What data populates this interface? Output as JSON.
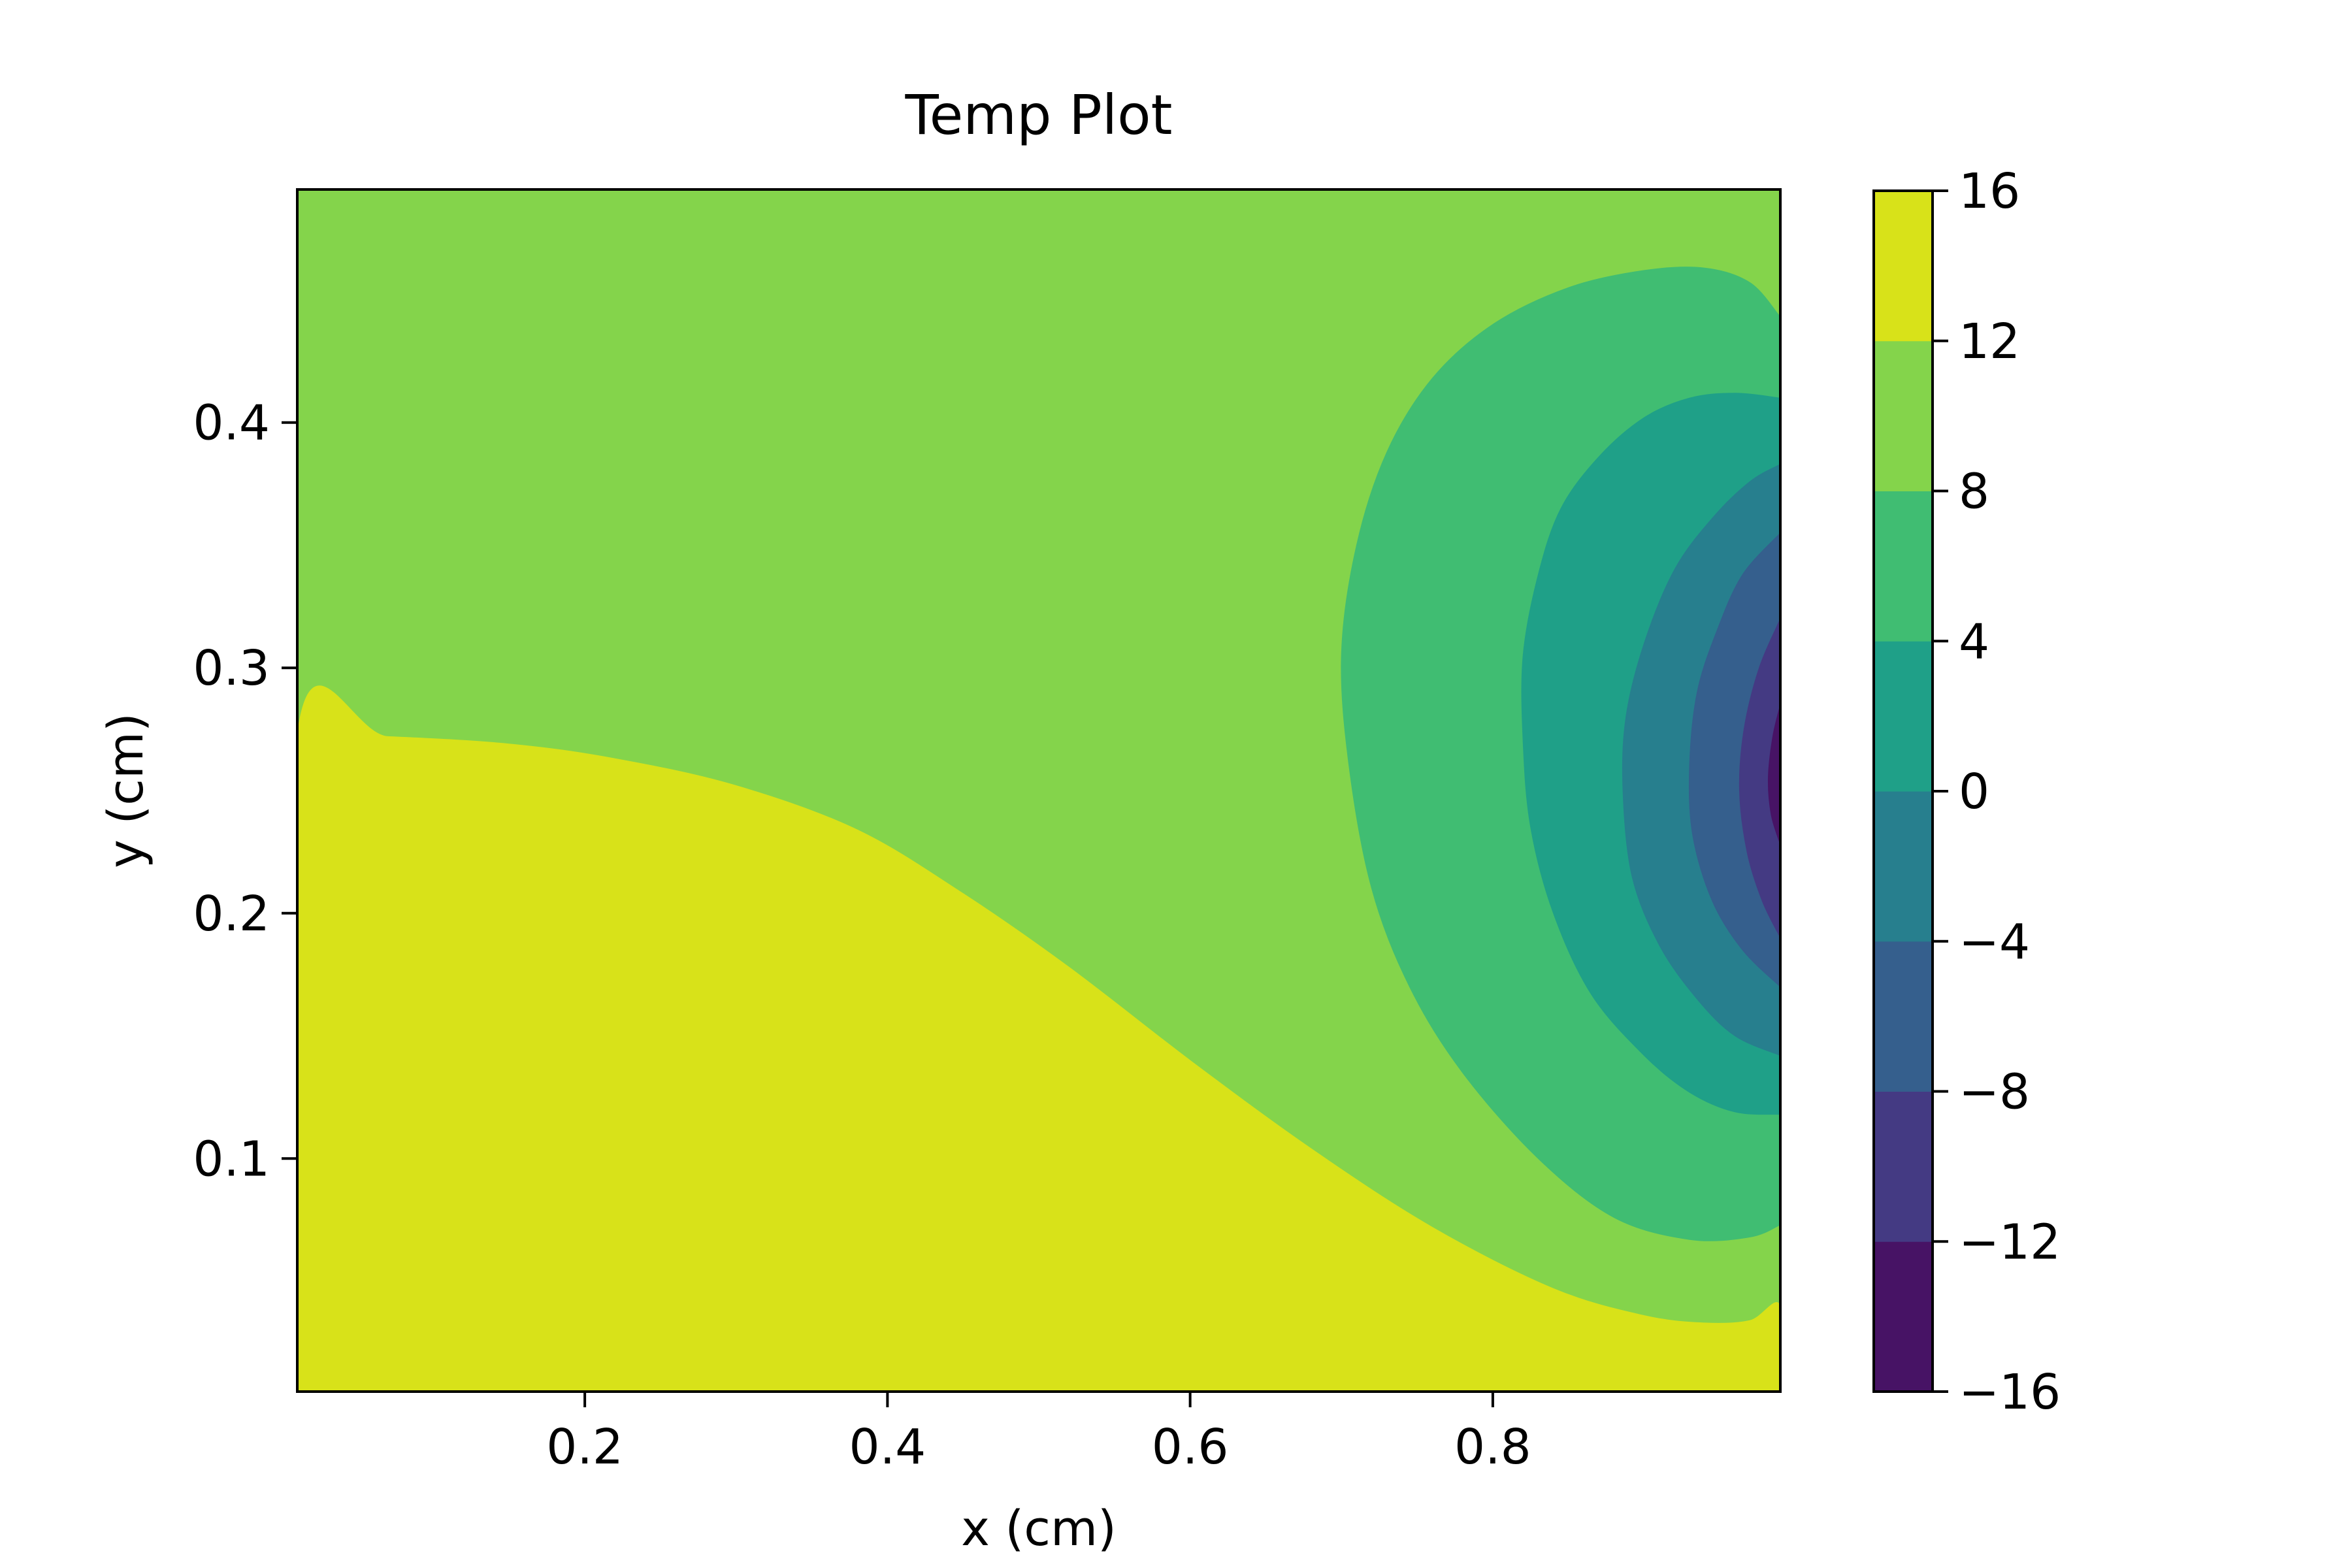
{
  "chart_data": {
    "type": "heatmap",
    "subtype": "filled-contour",
    "title": "Temp Plot",
    "xlabel": "x (cm)",
    "ylabel": "y (cm)",
    "xlim": [
      0.01,
      0.99
    ],
    "ylim": [
      0.005,
      0.495
    ],
    "xticks": [
      0.2,
      0.4,
      0.6,
      0.8
    ],
    "xtick_labels": [
      "0.2",
      "0.4",
      "0.6",
      "0.8"
    ],
    "yticks": [
      0.1,
      0.2,
      0.3,
      0.4
    ],
    "ytick_labels": [
      "0.1",
      "0.2",
      "0.3",
      "0.4"
    ],
    "grid": false,
    "colormap": "viridis",
    "colorbar": {
      "levels": [
        -16,
        -12,
        -8,
        -4,
        0,
        4,
        8,
        12,
        16
      ],
      "tick_labels": [
        "−16",
        "−12",
        "−8",
        "−4",
        "0",
        "4",
        "8",
        "12",
        "16"
      ],
      "colors": [
        "#471365",
        "#443a83",
        "#355f8d",
        "#277f8e",
        "#1fa088",
        "#40bd72",
        "#84d44b",
        "#d8e219"
      ]
    },
    "regions": [
      {
        "range": [
          8,
          12
        ],
        "color": "#84d44b",
        "boundary": [
          [
            0.01,
            0.005
          ],
          [
            0.01,
            0.495
          ],
          [
            0.99,
            0.495
          ],
          [
            0.99,
            0.005
          ]
        ]
      },
      {
        "range": [
          12,
          16
        ],
        "color": "#d8e219",
        "boundary": [
          [
            0.01,
            0.005
          ],
          [
            0.01,
            0.273
          ],
          [
            0.07,
            0.272
          ],
          [
            0.15,
            0.269
          ],
          [
            0.22,
            0.263
          ],
          [
            0.3,
            0.252
          ],
          [
            0.38,
            0.234
          ],
          [
            0.45,
            0.208
          ],
          [
            0.52,
            0.178
          ],
          [
            0.6,
            0.14
          ],
          [
            0.68,
            0.104
          ],
          [
            0.76,
            0.072
          ],
          [
            0.84,
            0.047
          ],
          [
            0.9,
            0.036
          ],
          [
            0.94,
            0.033
          ],
          [
            0.97,
            0.034
          ],
          [
            0.99,
            0.04
          ],
          [
            0.99,
            0.005
          ]
        ]
      },
      {
        "range": [
          4,
          8
        ],
        "color": "#40bd72",
        "boundary": [
          [
            0.99,
            0.443
          ],
          [
            0.97,
            0.457
          ],
          [
            0.94,
            0.463
          ],
          [
            0.9,
            0.462
          ],
          [
            0.85,
            0.455
          ],
          [
            0.8,
            0.44
          ],
          [
            0.76,
            0.418
          ],
          [
            0.73,
            0.388
          ],
          [
            0.71,
            0.35
          ],
          [
            0.7,
            0.306
          ],
          [
            0.705,
            0.26
          ],
          [
            0.72,
            0.21
          ],
          [
            0.745,
            0.17
          ],
          [
            0.78,
            0.135
          ],
          [
            0.83,
            0.1
          ],
          [
            0.88,
            0.076
          ],
          [
            0.93,
            0.067
          ],
          [
            0.97,
            0.068
          ],
          [
            0.99,
            0.073
          ]
        ]
      },
      {
        "range": [
          0,
          4
        ],
        "color": "#1fa088",
        "boundary": [
          [
            0.99,
            0.41
          ],
          [
            0.96,
            0.412
          ],
          [
            0.93,
            0.41
          ],
          [
            0.9,
            0.402
          ],
          [
            0.87,
            0.386
          ],
          [
            0.845,
            0.365
          ],
          [
            0.83,
            0.338
          ],
          [
            0.82,
            0.305
          ],
          [
            0.82,
            0.27
          ],
          [
            0.825,
            0.235
          ],
          [
            0.84,
            0.2
          ],
          [
            0.865,
            0.167
          ],
          [
            0.9,
            0.142
          ],
          [
            0.93,
            0.127
          ],
          [
            0.96,
            0.119
          ],
          [
            0.99,
            0.118
          ]
        ]
      },
      {
        "range": [
          -4,
          0
        ],
        "color": "#277f8e",
        "boundary": [
          [
            0.99,
            0.383
          ],
          [
            0.97,
            0.376
          ],
          [
            0.945,
            0.361
          ],
          [
            0.92,
            0.34
          ],
          [
            0.9,
            0.31
          ],
          [
            0.888,
            0.28
          ],
          [
            0.886,
            0.25
          ],
          [
            0.892,
            0.215
          ],
          [
            0.91,
            0.187
          ],
          [
            0.935,
            0.165
          ],
          [
            0.96,
            0.15
          ],
          [
            0.99,
            0.142
          ]
        ]
      },
      {
        "range": [
          -8,
          -4
        ],
        "color": "#355f8d",
        "boundary": [
          [
            0.99,
            0.355
          ],
          [
            0.965,
            0.338
          ],
          [
            0.948,
            0.315
          ],
          [
            0.935,
            0.29
          ],
          [
            0.93,
            0.26
          ],
          [
            0.932,
            0.232
          ],
          [
            0.945,
            0.205
          ],
          [
            0.965,
            0.185
          ],
          [
            0.99,
            0.17
          ]
        ]
      },
      {
        "range": [
          -12,
          -8
        ],
        "color": "#443a83",
        "boundary": [
          [
            0.99,
            0.32
          ],
          [
            0.976,
            0.3
          ],
          [
            0.966,
            0.275
          ],
          [
            0.963,
            0.25
          ],
          [
            0.968,
            0.225
          ],
          [
            0.978,
            0.205
          ],
          [
            0.99,
            0.19
          ]
        ]
      },
      {
        "range": [
          -16,
          -12
        ],
        "color": "#471365",
        "boundary": [
          [
            0.99,
            0.285
          ],
          [
            0.985,
            0.272
          ],
          [
            0.982,
            0.255
          ],
          [
            0.984,
            0.24
          ],
          [
            0.99,
            0.228
          ]
        ]
      }
    ]
  }
}
